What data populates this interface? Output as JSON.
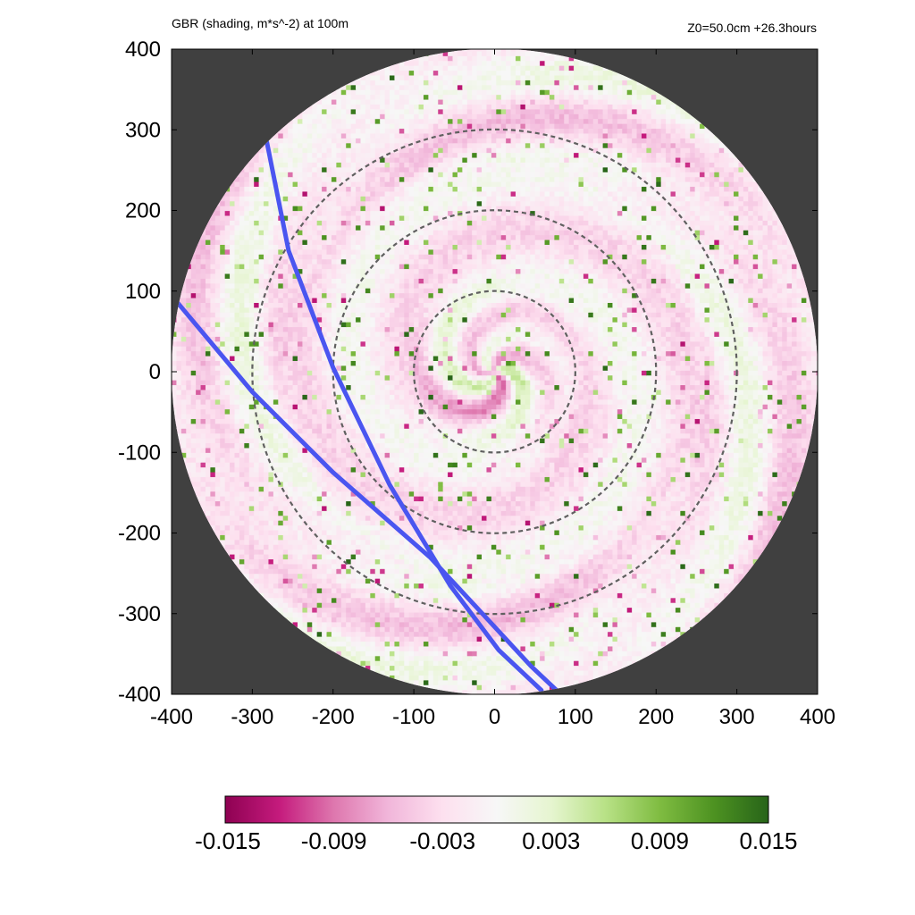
{
  "header": {
    "title_left": "GBR (shading, m*s^-2) at 100m",
    "title_right": "Z0=50.0cm  +26.3hours"
  },
  "colors": {
    "background_outside": "#404040",
    "track": "#4a55f0",
    "rings": "#606060",
    "colormap": [
      "#8e0152",
      "#c51b7d",
      "#de77ae",
      "#f1b6da",
      "#fde0ef",
      "#f7f7f7",
      "#e6f5d0",
      "#b8e186",
      "#7fbc41",
      "#4d9221",
      "#276419"
    ]
  },
  "chart_data": {
    "type": "heatmap",
    "title": "GBR (shading, m*s^-2) at 100m",
    "subtitle": "Z0=50.0cm  +26.3hours",
    "xlim": [
      -400,
      400
    ],
    "ylim": [
      -400,
      400
    ],
    "x_ticks": [
      -400,
      -300,
      -200,
      -100,
      0,
      100,
      200,
      300,
      400
    ],
    "y_ticks": [
      -400,
      -300,
      -200,
      -100,
      0,
      100,
      200,
      300,
      400
    ],
    "domain_radius": 400,
    "range_rings": [
      100,
      200,
      300
    ],
    "colorbar": {
      "min": -0.015,
      "max": 0.015,
      "tick_labels": [
        "-0.015",
        "-0.009",
        "-0.003",
        "0.003",
        "0.009",
        "0.015"
      ]
    },
    "tracks": [
      {
        "points": [
          [
            -282,
            285
          ],
          [
            -255,
            150
          ],
          [
            -200,
            5
          ],
          [
            -130,
            -140
          ],
          [
            -55,
            -265
          ],
          [
            5,
            -345
          ],
          [
            58,
            -395
          ]
        ]
      },
      {
        "points": [
          [
            -392,
            85
          ],
          [
            -300,
            -25
          ],
          [
            -200,
            -125
          ],
          [
            -80,
            -230
          ],
          [
            -15,
            -300
          ],
          [
            45,
            -365
          ],
          [
            82,
            -400
          ]
        ]
      }
    ]
  }
}
